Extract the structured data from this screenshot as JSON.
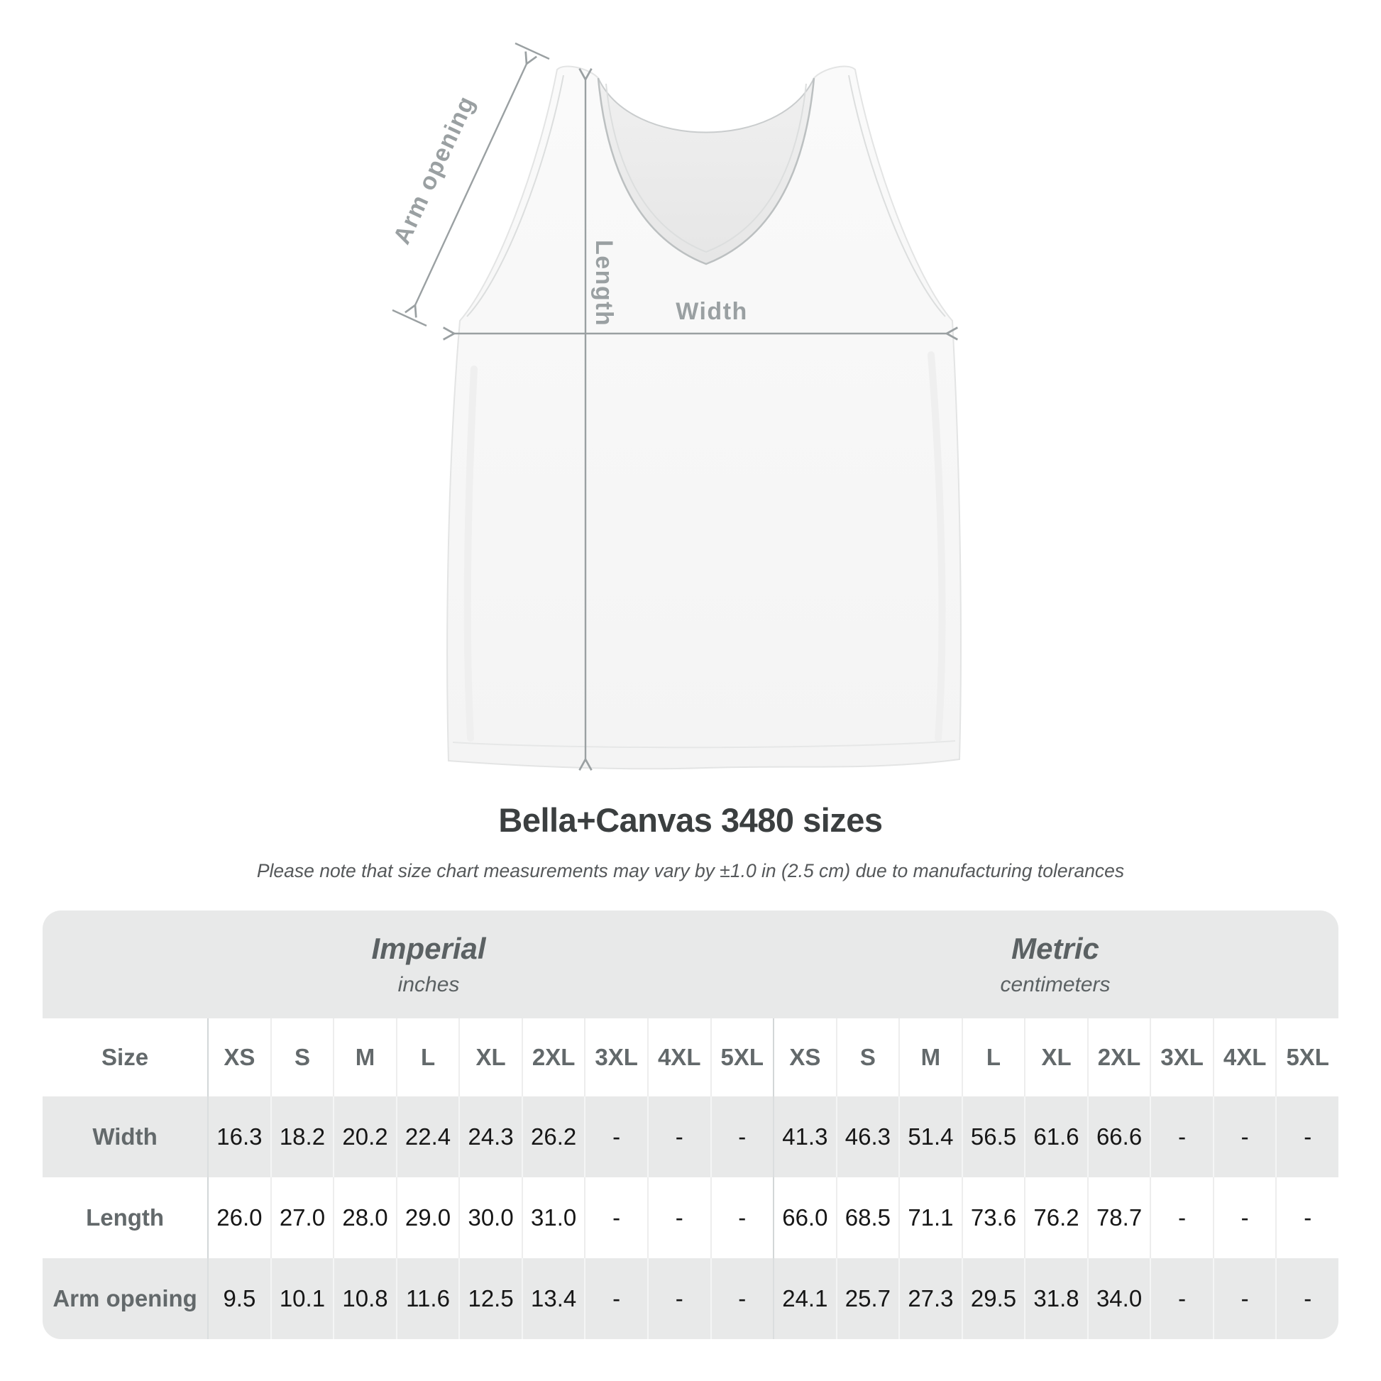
{
  "title": "Bella+Canvas 3480 sizes",
  "subtitle": "Please note that size chart measurements may vary by ±1.0 in (2.5 cm) due to manufacturing tolerances",
  "diagram": {
    "labels": {
      "arm_opening": "Arm opening",
      "length": "Length",
      "width": "Width"
    }
  },
  "table": {
    "size_label": "Size",
    "unit_groups": [
      {
        "name": "Imperial",
        "unit": "inches"
      },
      {
        "name": "Metric",
        "unit": "centimeters"
      }
    ],
    "sizes": [
      "XS",
      "S",
      "M",
      "L",
      "XL",
      "2XL",
      "3XL",
      "4XL",
      "5XL"
    ],
    "rows": [
      {
        "label": "Width",
        "imperial": [
          "16.3",
          "18.2",
          "20.2",
          "22.4",
          "24.3",
          "26.2",
          "-",
          "-",
          "-"
        ],
        "metric": [
          "41.3",
          "46.3",
          "51.4",
          "56.5",
          "61.6",
          "66.6",
          "-",
          "-",
          "-"
        ]
      },
      {
        "label": "Length",
        "imperial": [
          "26.0",
          "27.0",
          "28.0",
          "29.0",
          "30.0",
          "31.0",
          "-",
          "-",
          "-"
        ],
        "metric": [
          "66.0",
          "68.5",
          "71.1",
          "73.6",
          "76.2",
          "78.7",
          "-",
          "-",
          "-"
        ]
      },
      {
        "label": "Arm opening",
        "imperial": [
          "9.5",
          "10.1",
          "10.8",
          "11.6",
          "12.5",
          "13.4",
          "-",
          "-",
          "-"
        ],
        "metric": [
          "24.1",
          "25.7",
          "27.3",
          "29.5",
          "31.8",
          "34.0",
          "-",
          "-",
          "-"
        ]
      }
    ]
  },
  "chart_data": {
    "type": "table",
    "title": "Bella+Canvas 3480 sizes",
    "note": "Size chart measurements may vary by ±1.0 in (2.5 cm) due to manufacturing tolerances",
    "column_groups": [
      "Imperial (inches)",
      "Metric (centimeters)"
    ],
    "sizes": [
      "XS",
      "S",
      "M",
      "L",
      "XL",
      "2XL",
      "3XL",
      "4XL",
      "5XL"
    ],
    "measurements": [
      {
        "name": "Width",
        "imperial_in": [
          16.3,
          18.2,
          20.2,
          22.4,
          24.3,
          26.2,
          null,
          null,
          null
        ],
        "metric_cm": [
          41.3,
          46.3,
          51.4,
          56.5,
          61.6,
          66.6,
          null,
          null,
          null
        ]
      },
      {
        "name": "Length",
        "imperial_in": [
          26.0,
          27.0,
          28.0,
          29.0,
          30.0,
          31.0,
          null,
          null,
          null
        ],
        "metric_cm": [
          66.0,
          68.5,
          71.1,
          73.6,
          76.2,
          78.7,
          null,
          null,
          null
        ]
      },
      {
        "name": "Arm opening",
        "imperial_in": [
          9.5,
          10.1,
          10.8,
          11.6,
          12.5,
          13.4,
          null,
          null,
          null
        ],
        "metric_cm": [
          24.1,
          25.7,
          27.3,
          29.5,
          31.8,
          34.0,
          null,
          null,
          null
        ]
      }
    ]
  },
  "colors": {
    "diagram_annotation": "#9aa0a2",
    "table_band": "#e8e9e9",
    "row_shade": "#e8e9e9",
    "heading_text": "#3b3f40",
    "label_text": "#63696b",
    "value_text": "#161616"
  }
}
